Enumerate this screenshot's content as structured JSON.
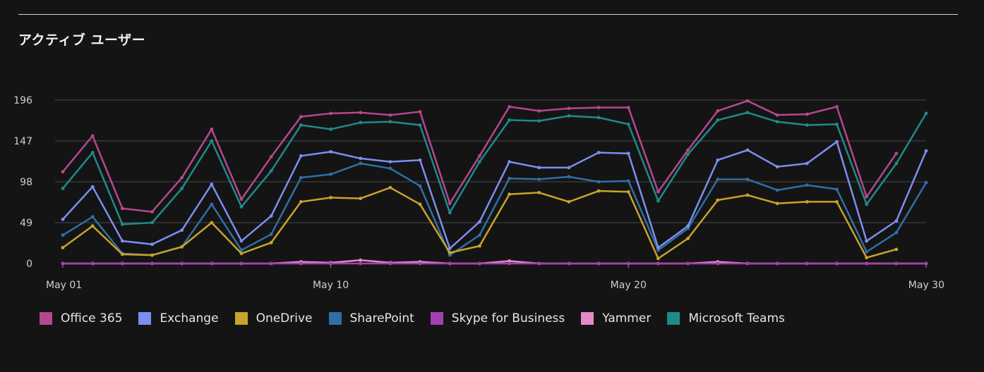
{
  "page": {
    "title": "アクティブ ユーザー"
  },
  "chart_data": {
    "type": "line",
    "title": "アクティブ ユーザー",
    "xlabel": "",
    "ylabel": "",
    "x": [
      "May 01",
      "May 02",
      "May 03",
      "May 04",
      "May 05",
      "May 06",
      "May 07",
      "May 08",
      "May 09",
      "May 10",
      "May 11",
      "May 12",
      "May 13",
      "May 14",
      "May 15",
      "May 16",
      "May 17",
      "May 18",
      "May 19",
      "May 20",
      "May 21",
      "May 22",
      "May 23",
      "May 24",
      "May 25",
      "May 26",
      "May 27",
      "May 28",
      "May 29",
      "May 30"
    ],
    "x_ticks": [
      {
        "index": 0,
        "label": "May 01"
      },
      {
        "index": 9,
        "label": "May 10"
      },
      {
        "index": 19,
        "label": "May 20"
      },
      {
        "index": 29,
        "label": "May 30"
      }
    ],
    "y_ticks": [
      0,
      49,
      98,
      147,
      196
    ],
    "ylim": [
      0,
      196
    ],
    "grid": true,
    "legend_position": "bottom-left",
    "series": [
      {
        "name": "Office 365",
        "color": "#b5478f",
        "values": [
          110,
          153,
          66,
          62,
          103,
          161,
          77,
          128,
          176,
          180,
          181,
          178,
          182,
          72,
          129,
          188,
          183,
          186,
          187,
          187,
          86,
          136,
          183,
          195,
          178,
          179,
          188,
          80,
          132,
          null
        ]
      },
      {
        "name": "Exchange",
        "color": "#7b8ff0",
        "values": [
          53,
          92,
          27,
          23,
          40,
          95,
          27,
          57,
          129,
          134,
          126,
          122,
          124,
          18,
          50,
          122,
          115,
          115,
          133,
          132,
          19,
          45,
          124,
          136,
          116,
          120,
          146,
          27,
          51,
          135
        ]
      },
      {
        "name": "OneDrive",
        "color": "#c8a42a",
        "values": [
          19,
          45,
          11,
          10,
          20,
          49,
          12,
          25,
          74,
          79,
          78,
          91,
          71,
          13,
          21,
          83,
          85,
          74,
          87,
          86,
          6,
          30,
          76,
          82,
          72,
          74,
          74,
          7,
          17,
          null
        ]
      },
      {
        "name": "SharePoint",
        "color": "#2f6fa6",
        "values": [
          34,
          56,
          12,
          10,
          20,
          71,
          16,
          35,
          103,
          107,
          120,
          114,
          93,
          10,
          34,
          102,
          101,
          104,
          98,
          99,
          16,
          42,
          101,
          101,
          88,
          94,
          89,
          14,
          37,
          97
        ]
      },
      {
        "name": "Skype for Business",
        "color": "#a241b3",
        "values": [
          0,
          0,
          0,
          0,
          0,
          0,
          0,
          0,
          0,
          0,
          0,
          0,
          0,
          0,
          0,
          0,
          0,
          0,
          0,
          0,
          0,
          0,
          0,
          0,
          0,
          0,
          0,
          0,
          0,
          0
        ]
      },
      {
        "name": "Yammer",
        "color": "#e58ac7",
        "values": [
          0,
          0,
          0,
          0,
          0,
          0,
          0,
          0,
          2,
          1,
          4,
          1,
          2,
          0,
          0,
          3,
          0,
          0,
          0,
          0,
          0,
          0,
          2,
          0,
          0,
          0,
          0,
          0,
          0,
          0
        ]
      },
      {
        "name": "Microsoft Teams",
        "color": "#1f8a8a",
        "values": [
          90,
          133,
          47,
          49,
          90,
          147,
          68,
          111,
          166,
          161,
          169,
          170,
          166,
          61,
          122,
          172,
          171,
          177,
          175,
          167,
          75,
          131,
          172,
          181,
          170,
          166,
          167,
          71,
          120,
          180
        ]
      }
    ]
  }
}
